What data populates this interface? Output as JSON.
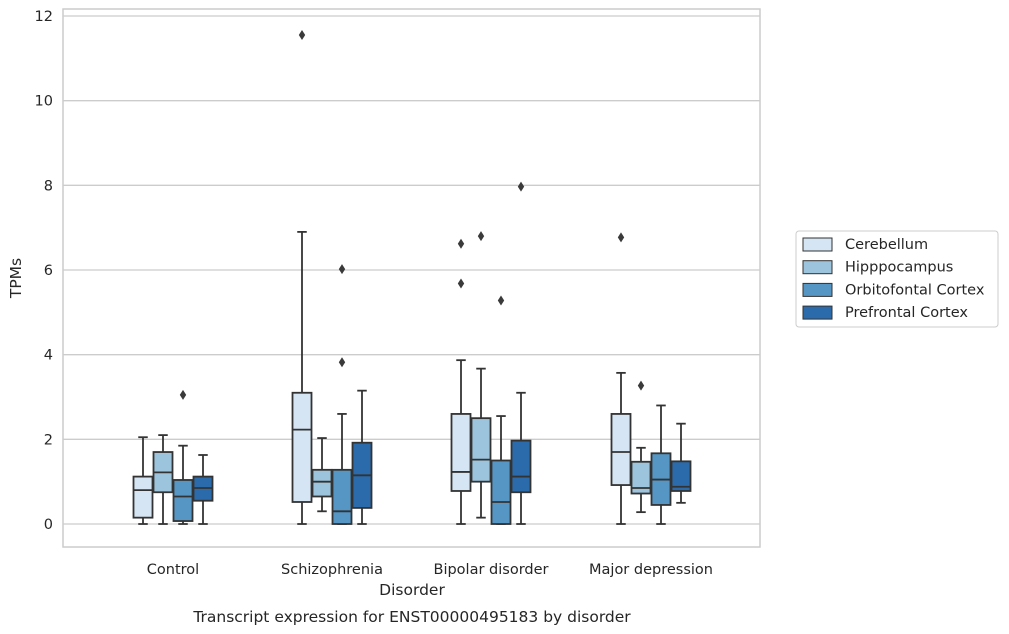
{
  "chart_data": {
    "type": "box",
    "title": "",
    "caption": "Transcript expression for ENST00000495183 by disorder",
    "xlabel": "Disorder",
    "ylabel": "TPMs",
    "ylim": [
      -0.55,
      12.2
    ],
    "yticks": [
      0,
      2,
      4,
      6,
      8,
      10,
      12
    ],
    "grid": "horizontal",
    "legend_placement": "right",
    "categories": [
      "Control",
      "Schizophrenia",
      "Bipolar disorder",
      "Major depression"
    ],
    "series": [
      {
        "name": "Cerebellum",
        "color": "#d6e5f3",
        "boxes": [
          {
            "min": 0.0,
            "q1": 0.15,
            "median": 0.8,
            "q3": 1.12,
            "max": 2.05,
            "outliers": []
          },
          {
            "min": 0.0,
            "q1": 0.52,
            "median": 2.23,
            "q3": 3.1,
            "max": 6.9,
            "outliers": [
              11.55
            ]
          },
          {
            "min": 0.0,
            "q1": 0.78,
            "median": 1.23,
            "q3": 2.6,
            "max": 3.87,
            "outliers": [
              5.68,
              6.62
            ]
          },
          {
            "min": 0.0,
            "q1": 0.92,
            "median": 1.7,
            "q3": 2.6,
            "max": 3.57,
            "outliers": [
              6.77
            ]
          }
        ]
      },
      {
        "name": "Hipppocampus",
        "color": "#9dc4dd",
        "boxes": [
          {
            "min": 0.0,
            "q1": 0.75,
            "median": 1.22,
            "q3": 1.7,
            "max": 2.1,
            "outliers": []
          },
          {
            "min": 0.3,
            "q1": 0.65,
            "median": 1.0,
            "q3": 1.28,
            "max": 2.03,
            "outliers": []
          },
          {
            "min": 0.15,
            "q1": 1.0,
            "median": 1.52,
            "q3": 2.5,
            "max": 3.67,
            "outliers": [
              6.8
            ]
          },
          {
            "min": 0.28,
            "q1": 0.72,
            "median": 0.85,
            "q3": 1.47,
            "max": 1.8,
            "outliers": [
              3.27
            ]
          }
        ]
      },
      {
        "name": "Orbitofontal Cortex",
        "color": "#5596c5",
        "boxes": [
          {
            "min": 0.0,
            "q1": 0.07,
            "median": 0.65,
            "q3": 1.04,
            "max": 1.85,
            "outliers": [
              3.05
            ]
          },
          {
            "min": 0.0,
            "q1": 0.0,
            "median": 0.3,
            "q3": 1.28,
            "max": 2.6,
            "outliers": [
              3.82,
              6.02
            ]
          },
          {
            "min": 0.0,
            "q1": 0.0,
            "median": 0.52,
            "q3": 1.5,
            "max": 2.55,
            "outliers": [
              5.28
            ]
          },
          {
            "min": 0.0,
            "q1": 0.45,
            "median": 1.05,
            "q3": 1.67,
            "max": 2.8,
            "outliers": []
          }
        ]
      },
      {
        "name": "Prefrontal Cortex",
        "color": "#2b6bab",
        "boxes": [
          {
            "min": 0.0,
            "q1": 0.55,
            "median": 0.85,
            "q3": 1.12,
            "max": 1.63,
            "outliers": []
          },
          {
            "min": 0.0,
            "q1": 0.38,
            "median": 1.15,
            "q3": 1.92,
            "max": 3.15,
            "outliers": []
          },
          {
            "min": 0.0,
            "q1": 0.75,
            "median": 1.12,
            "q3": 1.97,
            "max": 3.1,
            "outliers": [
              7.97
            ]
          },
          {
            "min": 0.5,
            "q1": 0.78,
            "median": 0.88,
            "q3": 1.48,
            "max": 2.37,
            "outliers": []
          }
        ]
      }
    ]
  }
}
